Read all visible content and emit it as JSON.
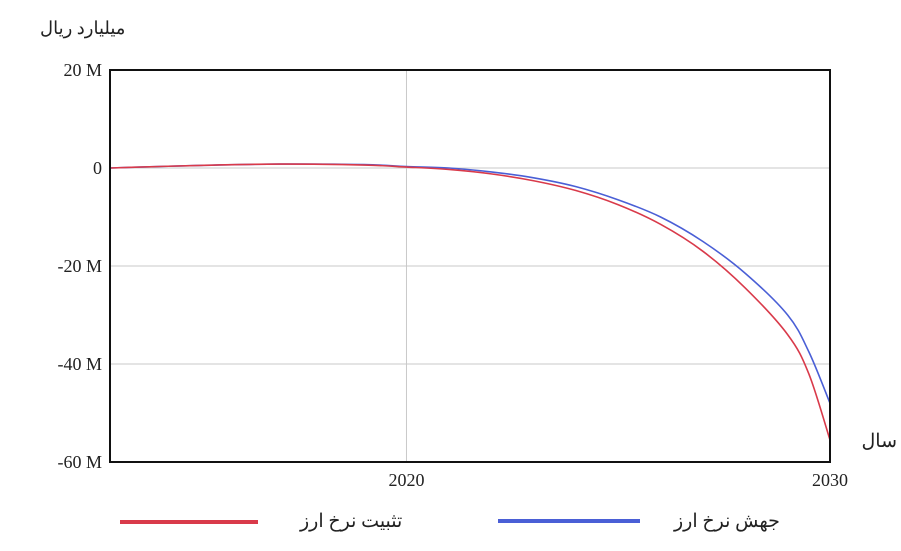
{
  "chart_data": {
    "type": "line",
    "ylabel": "میلیارد ریال",
    "xlabel": "سال",
    "xlim": [
      2013,
      2030
    ],
    "ylim": [
      -60000000,
      20000000
    ],
    "x_ticks": [
      2020,
      2030
    ],
    "x_tick_labels": [
      "2020",
      "2030"
    ],
    "y_ticks": [
      20000000,
      0,
      -20000000,
      -40000000,
      -60000000
    ],
    "y_tick_labels": [
      "20 M",
      "0",
      "-20 M",
      "-40 M",
      "-60 M"
    ],
    "grid": true,
    "legend_position": "bottom",
    "series": [
      {
        "name": "جهش نرخ ارز",
        "color": "#4a5fd6",
        "x": [
          2013,
          2015,
          2017,
          2019,
          2020,
          2021,
          2022,
          2023,
          2024,
          2025,
          2026,
          2027,
          2028,
          2029,
          2029.5,
          2030
        ],
        "y": [
          0,
          500000,
          800000,
          700000,
          300000,
          0,
          -800000,
          -2000000,
          -3800000,
          -6500000,
          -10000000,
          -15000000,
          -21500000,
          -30000000,
          -37500000,
          -48000000
        ]
      },
      {
        "name": "تثبیت نرخ ارز",
        "color": "#d93a4a",
        "x": [
          2013,
          2015,
          2017,
          2019,
          2020,
          2021,
          2022,
          2023,
          2024,
          2025,
          2026,
          2027,
          2028,
          2029,
          2029.5,
          2030
        ],
        "y": [
          0,
          500000,
          800000,
          600000,
          200000,
          -300000,
          -1200000,
          -2600000,
          -4600000,
          -7500000,
          -11500000,
          -17000000,
          -24500000,
          -34000000,
          -42000000,
          -55500000
        ]
      }
    ]
  }
}
